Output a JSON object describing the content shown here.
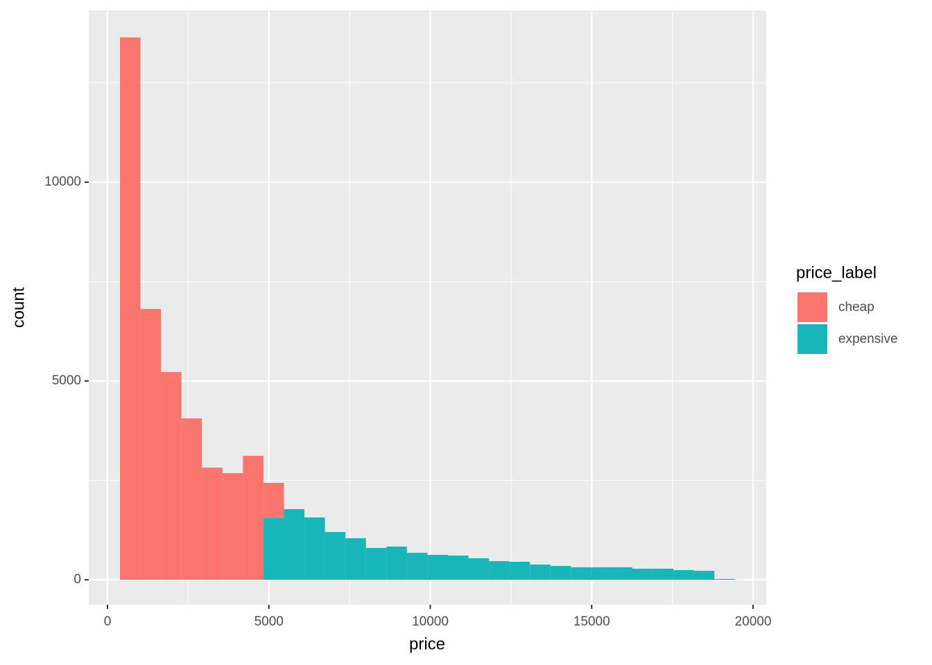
{
  "chart_data": {
    "type": "histogram",
    "stacked": true,
    "x_label": "price",
    "y_label": "count",
    "legend_title": "price_label",
    "legend_position": "right",
    "bins": [
      387,
      1022,
      1657,
      2292,
      2927,
      3562,
      4197,
      4832,
      5467,
      6102,
      6737,
      7372,
      8007,
      8642,
      9277,
      9912,
      10547,
      11182,
      11817,
      12452,
      13087,
      13722,
      14357,
      14992,
      15627,
      16262,
      16897,
      17532,
      18167,
      18802,
      19437
    ],
    "series": [
      {
        "name": "cheap",
        "color": "#f8766d",
        "values": [
          13641,
          6812,
          5226,
          4059,
          2822,
          2683,
          3118,
          888,
          0,
          0,
          0,
          0,
          0,
          0,
          0,
          0,
          0,
          0,
          0,
          0,
          0,
          0,
          0,
          0,
          0,
          0,
          0,
          0,
          0,
          0
        ]
      },
      {
        "name": "expensive",
        "color": "#19b5b9",
        "values": [
          0,
          0,
          0,
          0,
          0,
          0,
          0,
          1551,
          1777,
          1568,
          1202,
          1045,
          801,
          836,
          679,
          627,
          610,
          540,
          470,
          453,
          383,
          348,
          314,
          314,
          314,
          279,
          279,
          244,
          226,
          20
        ]
      }
    ],
    "xlim": [
      -580,
      20408
    ],
    "ylim": [
      -627,
      14321
    ],
    "xticks": [
      0,
      5000,
      10000,
      15000,
      20000
    ],
    "yticks": [
      0,
      5000,
      10000
    ],
    "x_minor_ticks": [
      2500,
      7500,
      12500,
      17500
    ],
    "y_minor_ticks": [
      2500,
      7500,
      12500
    ],
    "grid": true
  }
}
